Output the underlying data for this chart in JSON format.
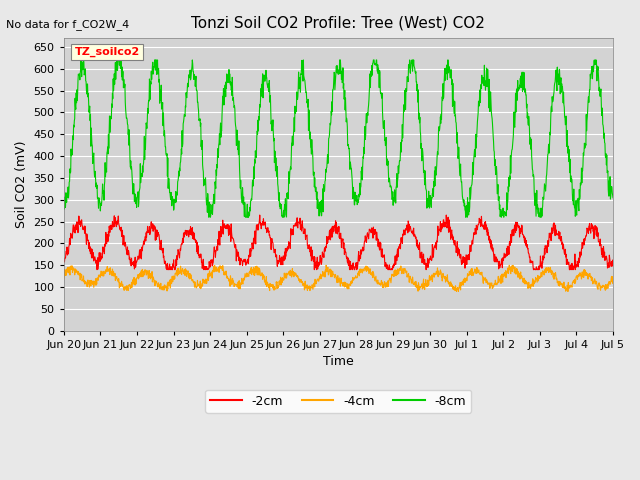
{
  "title": "Tonzi Soil CO2 Profile: Tree (West) CO2",
  "ylabel": "Soil CO2 (mV)",
  "xlabel": "Time",
  "top_left_note": "No data for f_CO2W_4",
  "box_label": "TZ_soilco2",
  "ylim": [
    0,
    670
  ],
  "yticks": [
    0,
    50,
    100,
    150,
    200,
    250,
    300,
    350,
    400,
    450,
    500,
    550,
    600,
    650
  ],
  "xtick_labels": [
    "Jun 20",
    "Jun 21",
    "Jun 22",
    "Jun 23",
    "Jun 24",
    "Jun 25",
    "Jun 26",
    "Jun 27",
    "Jun 28",
    "Jun 29",
    "Jun 30",
    "Jul 1",
    "Jul 2",
    "Jul 3",
    "Jul 4",
    "Jul 5"
  ],
  "line_2cm_color": "#ff0000",
  "line_4cm_color": "#ffa500",
  "line_8cm_color": "#00cc00",
  "legend_labels": [
    "-2cm",
    "-4cm",
    "-8cm"
  ],
  "background_color": "#e8e8e8",
  "plot_bg_color": "#d3d3d3",
  "grid_color": "#ffffff",
  "n_points": 1500,
  "start_day": 0,
  "end_day": 15
}
